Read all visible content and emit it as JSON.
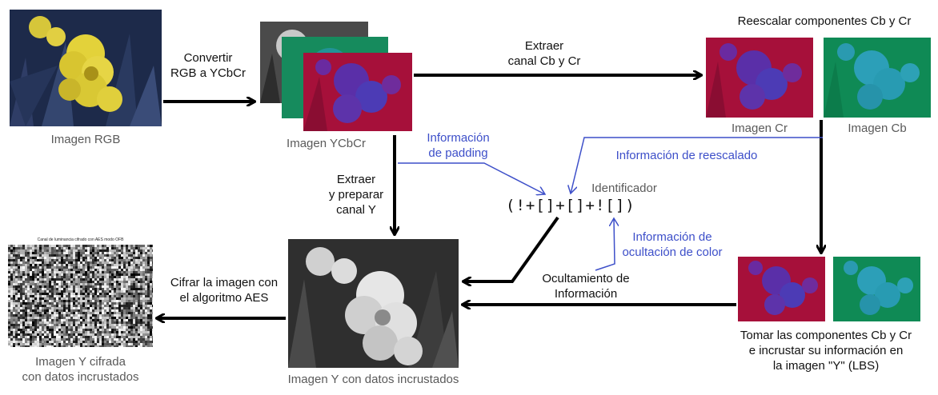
{
  "colors": {
    "arrow": "#000000",
    "info_arrow": "#3d4fc9",
    "label_text": "#111111",
    "caption_text": "#5a5a5a",
    "blue_text": "#3d4fc9"
  },
  "images": {
    "rgb": {
      "caption": "Imagen RGB"
    },
    "ycbcr": {
      "caption": "Imagen YCbCr"
    },
    "cr": {
      "caption": "Imagen Cr"
    },
    "cb": {
      "caption": "Imagen Cb"
    },
    "y_embedded": {
      "caption": "Imagen Y con datos incrustados"
    },
    "y_encrypted": {
      "caption_line1": "Imagen Y cifrada",
      "caption_line2": "con datos incrustados",
      "inner_title": "Canal de luminancia cifrado con AES modo OFB"
    }
  },
  "steps": {
    "convert": {
      "line1": "Convertir",
      "line2": "RGB a YCbCr"
    },
    "extract_cbcr": {
      "line1": "Extraer",
      "line2": "canal Cb y Cr"
    },
    "rescale_title": "Reescalar componentes Cb y Cr",
    "extract_y": {
      "line1": "Extraer",
      "line2": "y preparar",
      "line3": "canal Y"
    },
    "encrypt": {
      "line1": "Cifrar la imagen con",
      "line2": "el algoritmo AES"
    },
    "hide": {
      "line1": "Ocultamiento de",
      "line2": "Información"
    },
    "take": {
      "line1": "Tomar las componentes Cb y Cr",
      "line2": "e incrustar su información en",
      "line3": "la imagen \"Y\" (LBS)"
    }
  },
  "info": {
    "padding": {
      "line1": "Información",
      "line2": "de padding"
    },
    "rescaling": "Información de reescalado",
    "color_hiding": {
      "line1": "Información de",
      "line2": "ocultación de color"
    }
  },
  "identifier": {
    "label": "Identificador",
    "code": "(!+[]+[]+![])"
  }
}
